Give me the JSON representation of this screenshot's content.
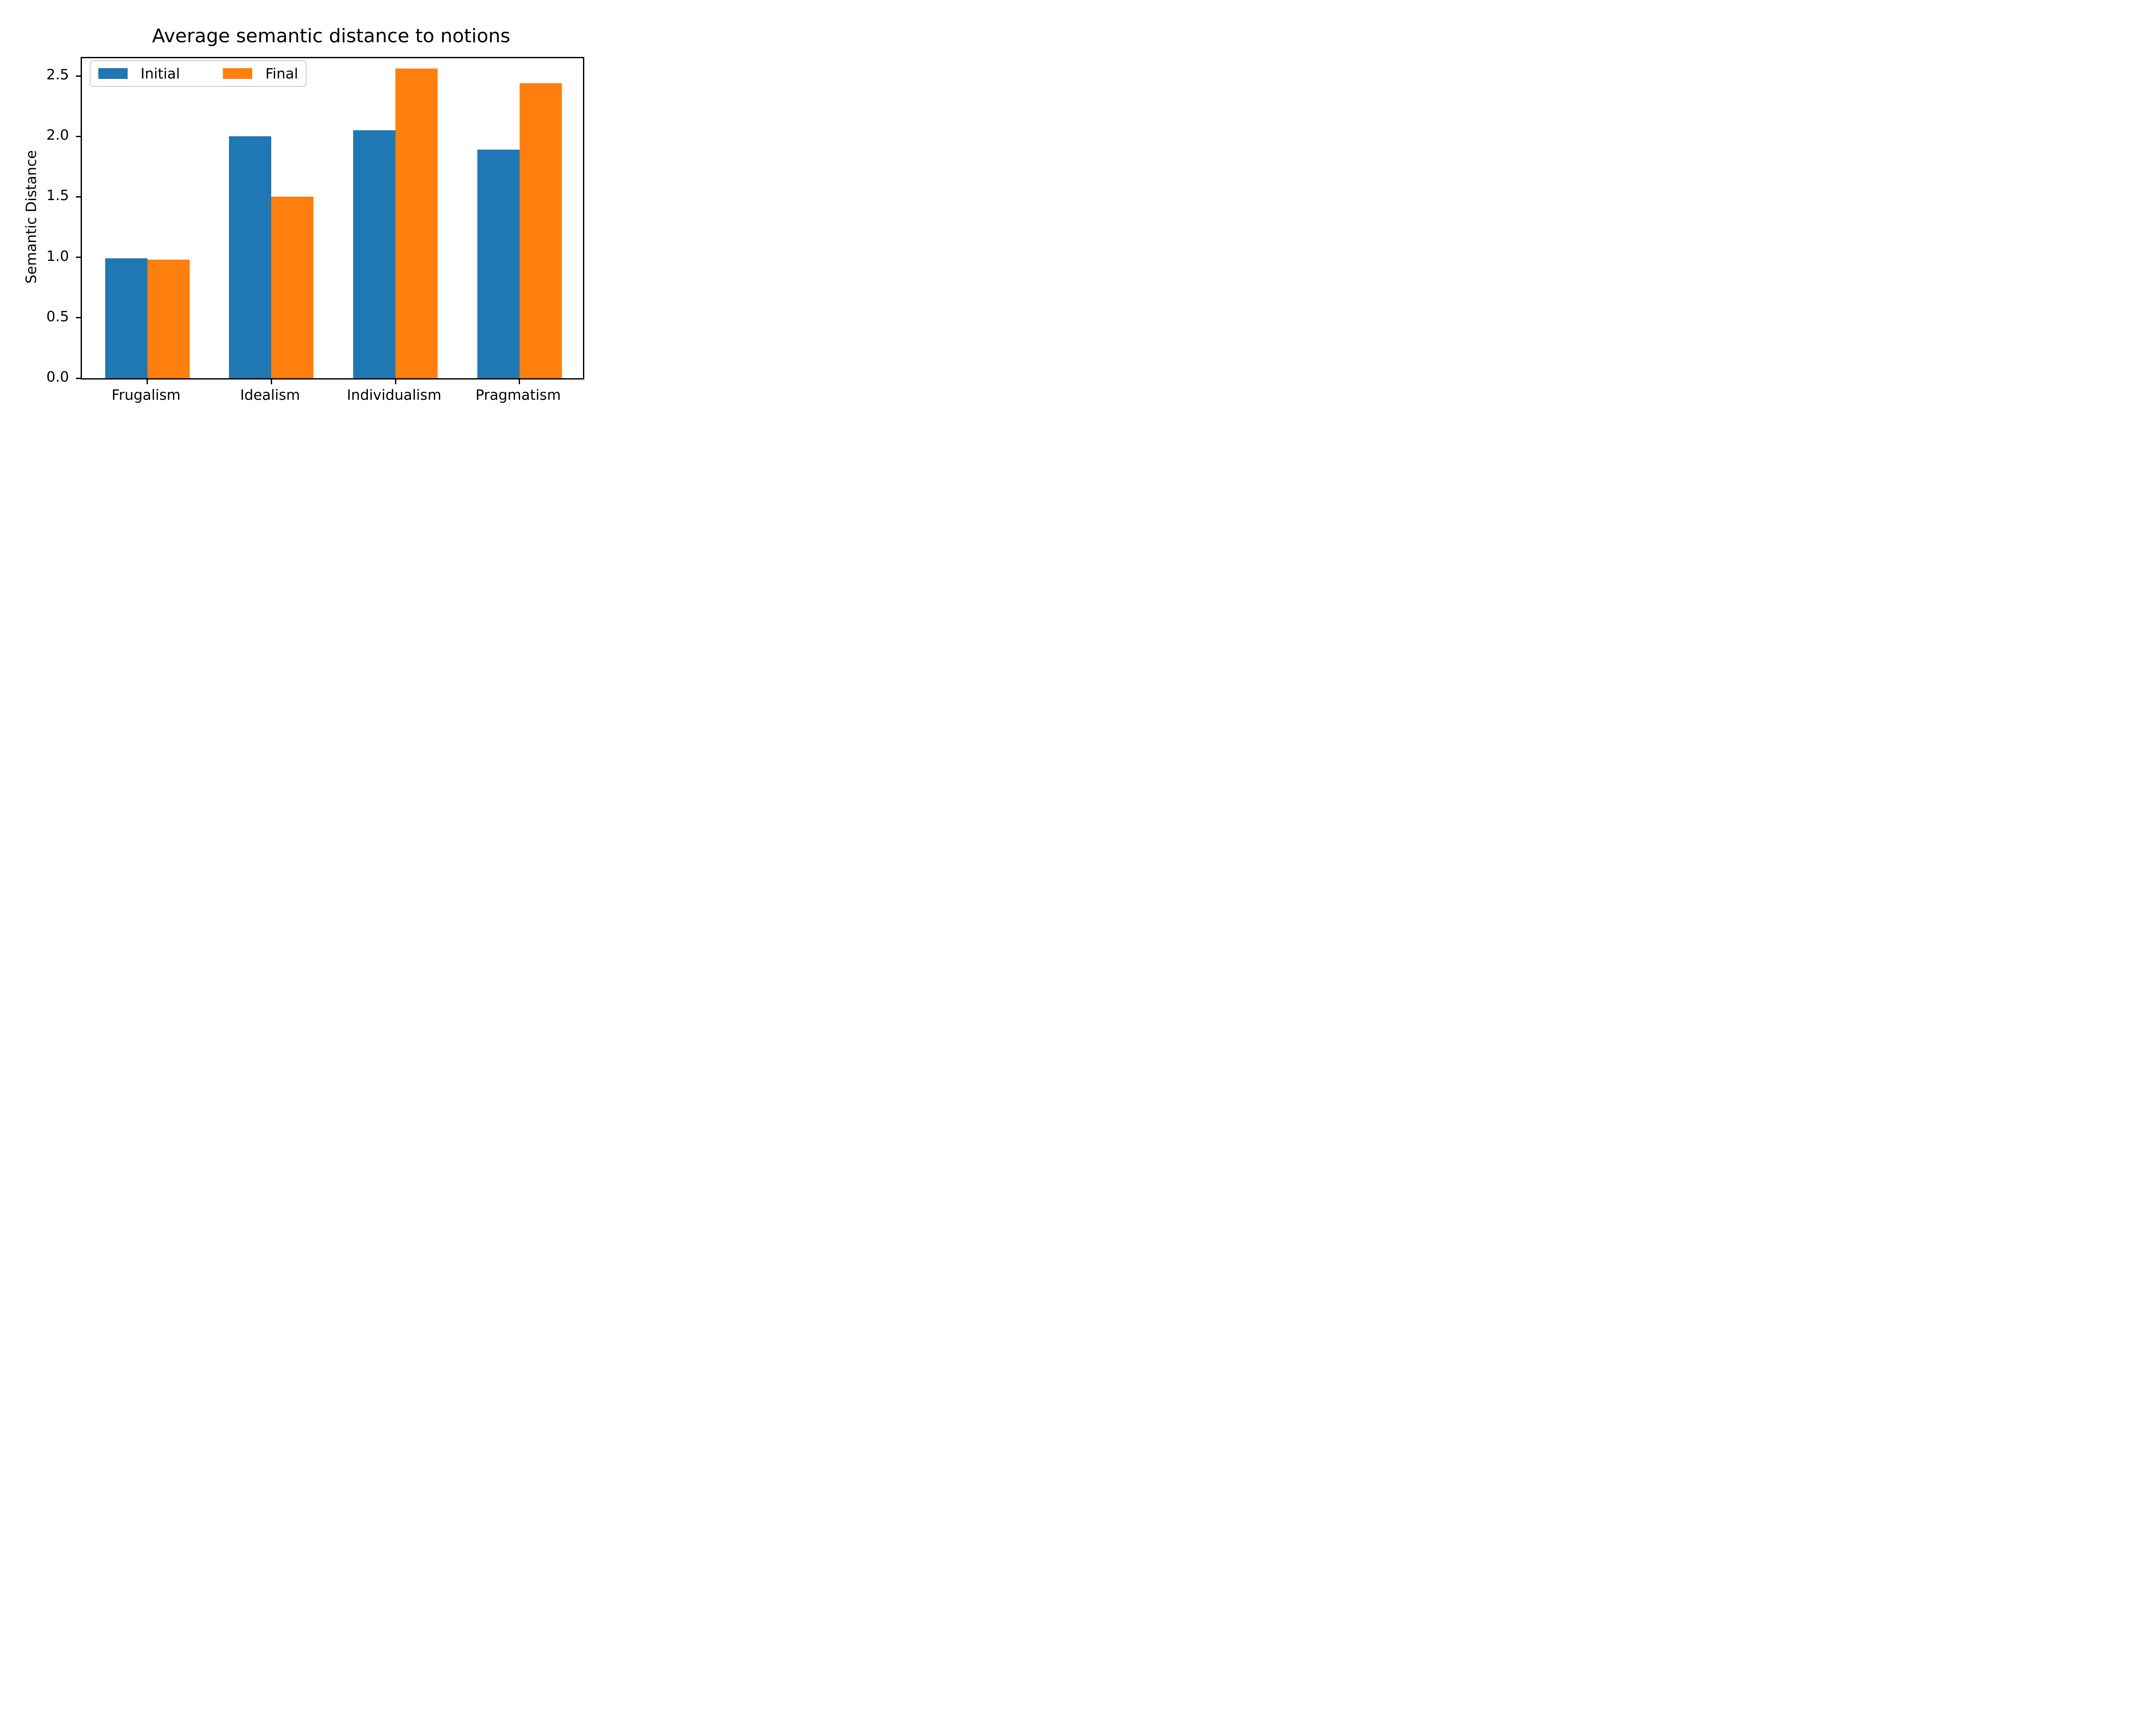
{
  "figure": {
    "title": "Average semantic distance to notions",
    "ylabel": "Semantic Distance"
  },
  "chart_data": {
    "type": "bar",
    "title": "Average semantic distance to notions",
    "xlabel": "",
    "ylabel": "Semantic Distance",
    "categories": [
      "Frugalism",
      "Idealism",
      "Individualism",
      "Pragmatism"
    ],
    "series": [
      {
        "name": "Initial",
        "color": "#1f77b4",
        "values": [
          0.99,
          2.0,
          2.05,
          1.89
        ]
      },
      {
        "name": "Final",
        "color": "#ff7f0e",
        "values": [
          0.98,
          1.5,
          2.56,
          2.44
        ]
      }
    ],
    "yticks": [
      0.0,
      0.5,
      1.0,
      1.5,
      2.0,
      2.5
    ],
    "ytick_labels": [
      "0.0",
      "0.5",
      "1.0",
      "1.5",
      "2.0",
      "2.5"
    ],
    "ylim": [
      0,
      2.6465
    ],
    "grid": false,
    "legend_position": "upper left",
    "background_color": "#ffffff",
    "text_color": "#000000",
    "spine_color": "#000000",
    "legend_border_color": "#cccccc"
  }
}
